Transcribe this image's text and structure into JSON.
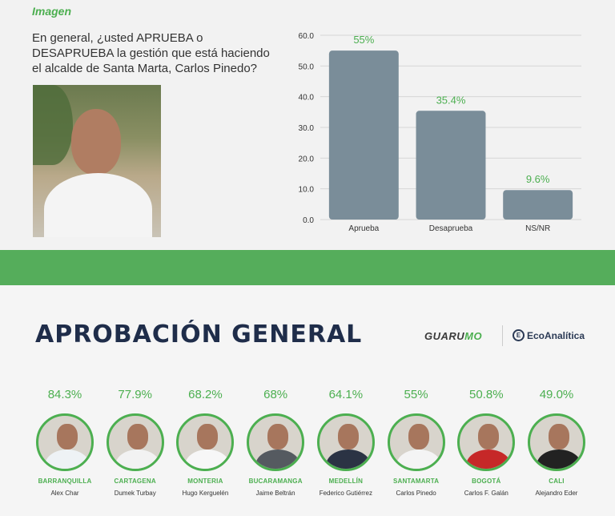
{
  "top": {
    "tag": "Imagen",
    "question": "En general, ¿usted APRUEBA o DESAPRUEBA la gestión que está haciendo el alcalde de Santa Marta, Carlos Pinedo?"
  },
  "chart_data": {
    "type": "bar",
    "categories": [
      "Aprueba",
      "Desaprueba",
      "NS/NR"
    ],
    "values": [
      55,
      35.4,
      9.6
    ],
    "value_labels": [
      "55%",
      "35.4%",
      "9.6%"
    ],
    "yticks": [
      "0.0",
      "10.0",
      "20.0",
      "30.0",
      "40.0",
      "50.0",
      "60.0"
    ],
    "ylim": [
      0,
      60
    ],
    "grid": true,
    "bar_color": "#7a8d99",
    "label_color": "#4caf50"
  },
  "bottom": {
    "headline": "APROBACIÓN GENERAL",
    "logo1_a": "GUARU",
    "logo1_b": "MO",
    "logo2": "EcoAnalítica",
    "logo2_mark": "E",
    "mayors": [
      {
        "pct": "84.3%",
        "city": "BARRANQUILLA",
        "name": "Alex Char",
        "shirt": "#eef2f5"
      },
      {
        "pct": "77.9%",
        "city": "CARTAGENA",
        "name": "Dumek Turbay",
        "shirt": "#f2f2f2"
      },
      {
        "pct": "68.2%",
        "city": "MONTERIA",
        "name": "Hugo Kerguelén",
        "shirt": "#f7f7f7"
      },
      {
        "pct": "68%",
        "city": "BUCARAMANGA",
        "name": "Jaime Beltrán",
        "shirt": "#555a60"
      },
      {
        "pct": "64.1%",
        "city": "MEDELLÍN",
        "name": "Federico Gutiérrez",
        "shirt": "#2b3344"
      },
      {
        "pct": "55%",
        "city": "SANTAMARTA",
        "name": "Carlos Pinedo",
        "shirt": "#f4f4f4"
      },
      {
        "pct": "50.8%",
        "city": "BOGOTÁ",
        "name": "Carlos F. Galán",
        "shirt": "#c62828"
      },
      {
        "pct": "49.0%",
        "city": "CALI",
        "name": "Alejandro Eder",
        "shirt": "#222222"
      }
    ]
  }
}
